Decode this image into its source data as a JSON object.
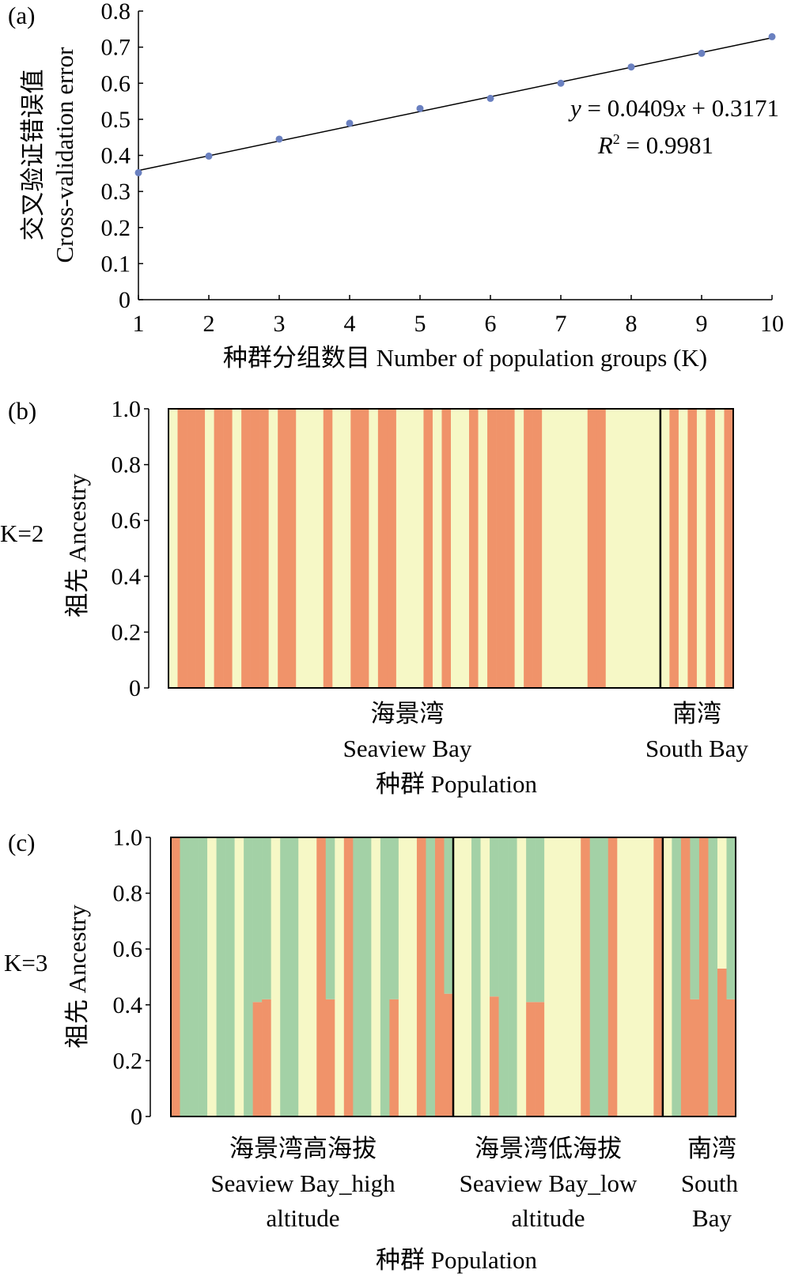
{
  "colors": {
    "orange": "#F0936A",
    "green": "#A3D1A6",
    "yellow": "#F6F8C6",
    "point": "#6A80C0"
  },
  "chart_data": [
    {
      "type": "scatter",
      "panel": "(a)",
      "x": [
        1,
        2,
        3,
        4,
        5,
        6,
        7,
        8,
        9,
        10
      ],
      "y": [
        0.352,
        0.398,
        0.445,
        0.489,
        0.53,
        0.558,
        0.6,
        0.645,
        0.683,
        0.729
      ],
      "fit": {
        "slope": 0.0409,
        "intercept": 0.3171,
        "equation_lhs": "y",
        "equation_rhs": " = 0.0409",
        "equation_x": "x",
        "equation_tail": " + 0.3171",
        "r2_label": "R",
        "r2_sup": "2",
        "r2_value": " = 0.9981"
      },
      "xlabel": "种群分组数目 Number of population groups (K)",
      "ylabel_cn": "交叉验证错误值",
      "ylabel_en": "Cross-validation error",
      "xlim": [
        1,
        10
      ],
      "ylim": [
        0,
        0.8
      ],
      "xticks": [
        "1",
        "2",
        "3",
        "4",
        "5",
        "6",
        "7",
        "8",
        "9",
        "10"
      ],
      "yticks": [
        "0",
        "0.1",
        "0.2",
        "0.3",
        "0.4",
        "0.5",
        "0.6",
        "0.7",
        "0.8"
      ]
    },
    {
      "type": "bar",
      "panel": "(b)",
      "k_label": "K=2",
      "ylabel": "祖先 Ancestry",
      "ylim": [
        0,
        1
      ],
      "yticks": [
        "0",
        "0.2",
        "0.4",
        "0.6",
        "0.8",
        "1.0"
      ],
      "xlabel": "种群 Population",
      "groups": [
        {
          "cn": "海景湾",
          "en": [
            "Seaview Bay"
          ],
          "size": 54
        },
        {
          "cn": "南湾",
          "en": [
            "South Bay"
          ],
          "size": 8
        }
      ],
      "orange_fraction": [
        0,
        1,
        1,
        1,
        0,
        1,
        1,
        0,
        1,
        1,
        1,
        0,
        1,
        1,
        0,
        0,
        0,
        1,
        0,
        0,
        1,
        1,
        0,
        1,
        1,
        0,
        0,
        0,
        1,
        0,
        1,
        0,
        0,
        1,
        0,
        1,
        1,
        1,
        0,
        1,
        1,
        0,
        0,
        0,
        0,
        0,
        1,
        1,
        0,
        0,
        0,
        0,
        0,
        0,
        0,
        1,
        0,
        1,
        0,
        1,
        0,
        1
      ]
    },
    {
      "type": "bar",
      "panel": "(c)",
      "k_label": "K=3",
      "ylabel": "祖先 Ancestry",
      "ylim": [
        0,
        1
      ],
      "yticks": [
        "0",
        "0.2",
        "0.4",
        "0.6",
        "0.8",
        "1.0"
      ],
      "xlabel": "种群 Population",
      "components_order": [
        "orange",
        "green",
        "yellow"
      ],
      "groups": [
        {
          "cn": "海景湾高海拔",
          "en": [
            "Seaview Bay_high",
            "altitude"
          ],
          "size": 31
        },
        {
          "cn": "海景湾低海拔",
          "en": [
            "Seaview Bay_low",
            "altitude"
          ],
          "size": 23
        },
        {
          "cn": "南湾",
          "en": [
            "South",
            "Bay"
          ],
          "size": 8
        }
      ],
      "q": [
        [
          1,
          0,
          0
        ],
        [
          0,
          1,
          0
        ],
        [
          0,
          1,
          0
        ],
        [
          0,
          1,
          0
        ],
        [
          0,
          0,
          1
        ],
        [
          0,
          1,
          0
        ],
        [
          0,
          1,
          0
        ],
        [
          0,
          0,
          1
        ],
        [
          0,
          1,
          0
        ],
        [
          0.41,
          0.59,
          0
        ],
        [
          0.42,
          0.58,
          0
        ],
        [
          0,
          0,
          1
        ],
        [
          0,
          1,
          0
        ],
        [
          0,
          1,
          0
        ],
        [
          0,
          0,
          1
        ],
        [
          0,
          0,
          1
        ],
        [
          1,
          0,
          0
        ],
        [
          0.42,
          0.58,
          0
        ],
        [
          0,
          0,
          1
        ],
        [
          1,
          0,
          0
        ],
        [
          0,
          1,
          0
        ],
        [
          0,
          1,
          0
        ],
        [
          0,
          0,
          1
        ],
        [
          0,
          1,
          0
        ],
        [
          0.42,
          0.58,
          0
        ],
        [
          0,
          0,
          1
        ],
        [
          0,
          0,
          1
        ],
        [
          1,
          0,
          0
        ],
        [
          0,
          1,
          0
        ],
        [
          1,
          0,
          0
        ],
        [
          0.44,
          0.56,
          0
        ],
        [
          0,
          0,
          1
        ],
        [
          0,
          0,
          1
        ],
        [
          0,
          1,
          0
        ],
        [
          0,
          0,
          1
        ],
        [
          0.43,
          0.57,
          0
        ],
        [
          0,
          1,
          0
        ],
        [
          0,
          1,
          0
        ],
        [
          0,
          0,
          1
        ],
        [
          0.41,
          0.59,
          0
        ],
        [
          0.41,
          0.59,
          0
        ],
        [
          0,
          0,
          1
        ],
        [
          0,
          0,
          1
        ],
        [
          0,
          0,
          1
        ],
        [
          0,
          0,
          1
        ],
        [
          1,
          0,
          0
        ],
        [
          0,
          1,
          0
        ],
        [
          0,
          1,
          0
        ],
        [
          1,
          0,
          0
        ],
        [
          0,
          0,
          1
        ],
        [
          0,
          0,
          1
        ],
        [
          0,
          0,
          1
        ],
        [
          0,
          0,
          1
        ],
        [
          1,
          0,
          0
        ],
        [
          0,
          0,
          1
        ],
        [
          0,
          1,
          0
        ],
        [
          1,
          0,
          0
        ],
        [
          0.42,
          0.58,
          0
        ],
        [
          1,
          0,
          0
        ],
        [
          0,
          1,
          0
        ],
        [
          0.53,
          0,
          0.47
        ],
        [
          0.42,
          0.58,
          0
        ]
      ]
    }
  ]
}
